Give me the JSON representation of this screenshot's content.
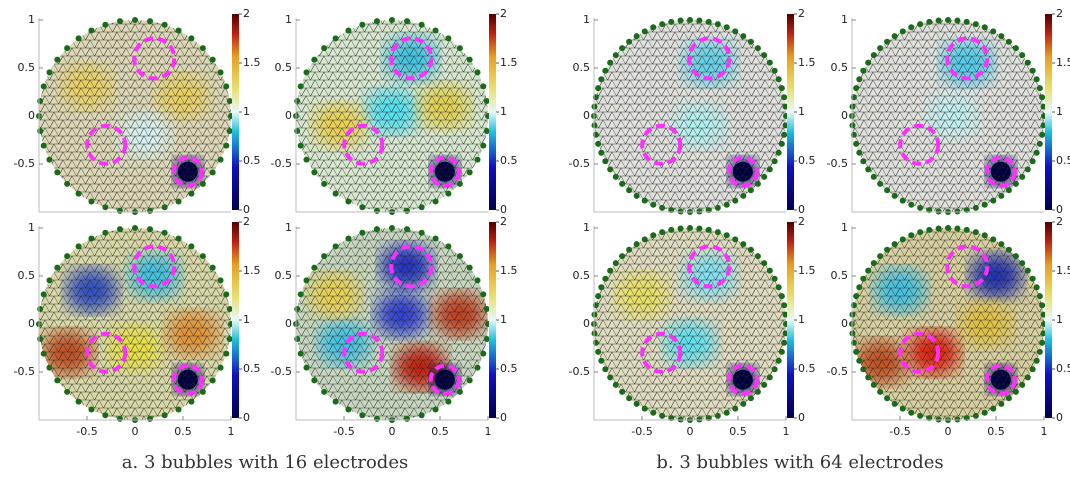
{
  "axes": {
    "xticks": [
      -0.5,
      0,
      0.5,
      1
    ],
    "yticks": [
      -0.5,
      0,
      0.5,
      1
    ],
    "colorbar_ticks": [
      0,
      0.5,
      1,
      1.5,
      2
    ]
  },
  "panels": [
    {
      "caption": "a. 3 bubbles with 16 electrodes"
    },
    {
      "caption": "b. 3 bubbles with 64 electrodes"
    }
  ]
}
